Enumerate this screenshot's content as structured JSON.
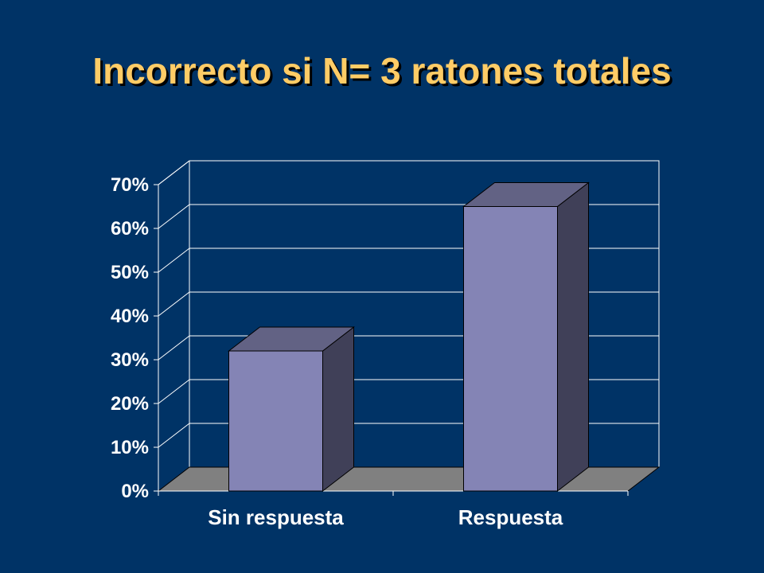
{
  "slide": {
    "title": "Incorrecto si N= 3 ratones totales"
  },
  "colors": {
    "background": "#003366",
    "title": "#FFCC66",
    "bar_front": "#8484B5",
    "bar_top": "#626284",
    "bar_side": "#404058",
    "floor": "#808080",
    "gridline": "#FFFFFF",
    "text": "#FFFFFF"
  },
  "chart_data": {
    "type": "bar",
    "style": "3d-column",
    "categories": [
      "Sin respuesta",
      "Respuesta"
    ],
    "values": [
      0.32,
      0.65
    ],
    "ylim": [
      0,
      0.7
    ],
    "yticks": [
      "0%",
      "10%",
      "20%",
      "30%",
      "40%",
      "50%",
      "60%",
      "70%"
    ],
    "grid": true,
    "legend": "none"
  }
}
